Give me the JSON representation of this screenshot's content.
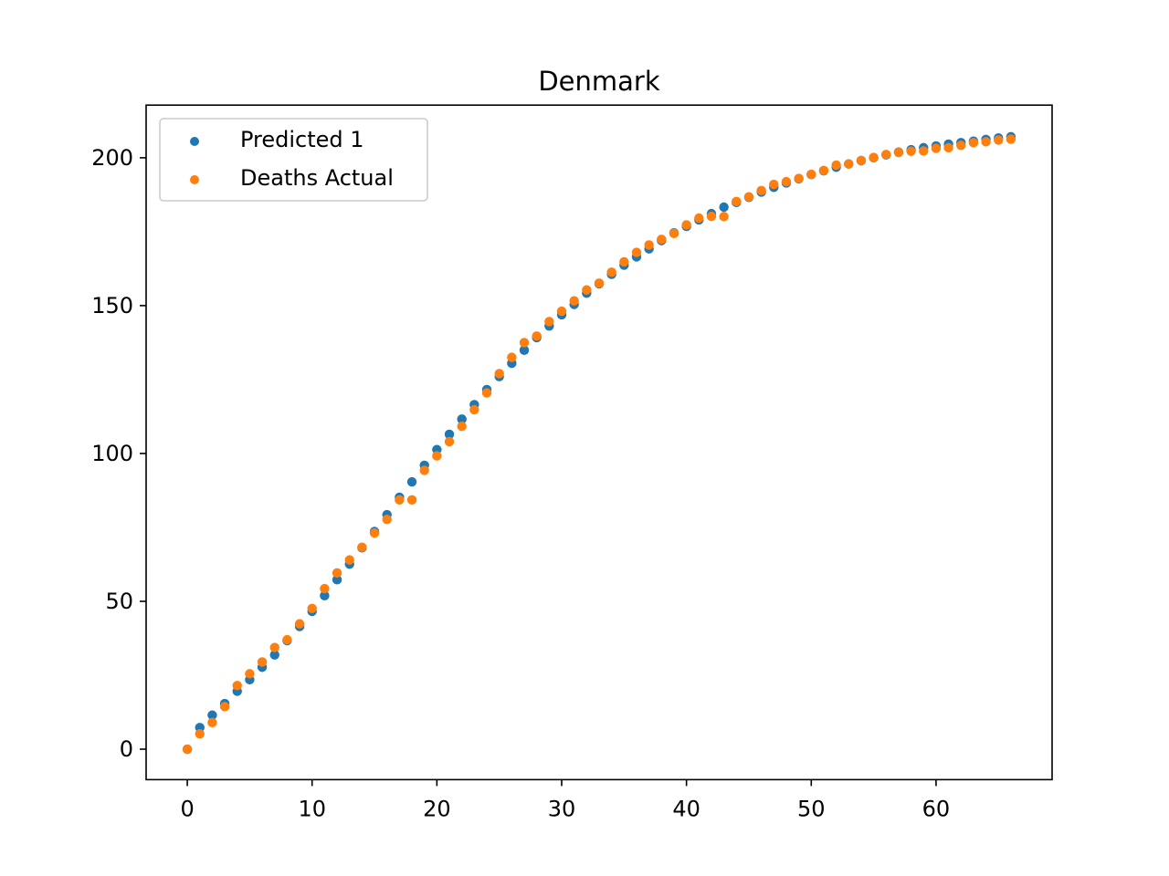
{
  "chart_data": {
    "type": "scatter",
    "title": "Denmark",
    "xlabel": "",
    "ylabel": "",
    "xlim": [
      -3.3,
      69.3
    ],
    "ylim": [
      -10.3,
      217.8
    ],
    "xticks": [
      0,
      10,
      20,
      30,
      40,
      50,
      60
    ],
    "yticks": [
      0,
      50,
      100,
      150,
      200
    ],
    "legend_position": "upper-left",
    "series": [
      {
        "name": "Predicted 1",
        "color": "#1f77b4",
        "x": [
          0,
          1,
          2,
          3,
          4,
          5,
          6,
          7,
          8,
          9,
          10,
          11,
          12,
          13,
          14,
          15,
          16,
          17,
          18,
          19,
          20,
          21,
          22,
          23,
          24,
          25,
          26,
          27,
          28,
          29,
          30,
          31,
          32,
          33,
          34,
          35,
          36,
          37,
          38,
          39,
          40,
          41,
          42,
          43,
          44,
          45,
          46,
          47,
          48,
          49,
          50,
          51,
          52,
          53,
          54,
          55,
          56,
          57,
          58,
          59,
          60,
          61,
          62,
          63,
          64,
          65,
          66
        ],
        "y": [
          0,
          7.3,
          11.5,
          15.4,
          19.6,
          23.5,
          27.7,
          31.9,
          36.7,
          41.5,
          46.6,
          51.9,
          57.3,
          62.6,
          68.1,
          73.6,
          79.3,
          85.2,
          90.4,
          96,
          101.3,
          106.5,
          111.6,
          116.5,
          121.6,
          126,
          130.5,
          134.9,
          139.2,
          143.1,
          146.9,
          150.4,
          154.2,
          157.4,
          160.6,
          163.7,
          166.5,
          169.2,
          172,
          174.6,
          176.8,
          179,
          181.1,
          183.3,
          184.9,
          186.6,
          188.4,
          190,
          191.5,
          192.9,
          194.3,
          195.6,
          196.8,
          197.9,
          199,
          200,
          201,
          201.9,
          202.7,
          203.4,
          204,
          204.6,
          205.1,
          205.6,
          206.2,
          206.7,
          207.1
        ]
      },
      {
        "name": "Deaths Actual",
        "color": "#ff7f0e",
        "x": [
          0,
          1,
          2,
          3,
          4,
          5,
          6,
          7,
          8,
          9,
          10,
          11,
          12,
          13,
          14,
          15,
          16,
          17,
          18,
          19,
          20,
          21,
          22,
          23,
          24,
          25,
          26,
          27,
          28,
          29,
          30,
          31,
          32,
          33,
          34,
          35,
          36,
          37,
          38,
          39,
          40,
          41,
          42,
          43,
          44,
          45,
          46,
          47,
          48,
          49,
          50,
          51,
          52,
          53,
          54,
          55,
          56,
          57,
          58,
          59,
          60,
          61,
          62,
          63,
          64,
          65,
          66
        ],
        "y": [
          0,
          5.2,
          9,
          14.4,
          21.5,
          25.5,
          29.5,
          34.4,
          37,
          42.4,
          47.6,
          54.3,
          59.6,
          64,
          68.3,
          73.1,
          77.7,
          84.3,
          84.3,
          94.3,
          99.2,
          104,
          109.2,
          114.8,
          120.5,
          127,
          132.5,
          137.5,
          139.7,
          144.6,
          148.1,
          151.6,
          155.3,
          157.6,
          161.3,
          164.8,
          168,
          170.5,
          172.4,
          174.4,
          177.3,
          179.6,
          180.2,
          180.1,
          185.2,
          186.8,
          188.9,
          191,
          191.9,
          193,
          194.4,
          195.7,
          197.5,
          197.9,
          199.1,
          200.1,
          201.1,
          201.8,
          202.2,
          202.3,
          203.2,
          203.4,
          204.2,
          205.1,
          205.4,
          206,
          206.3
        ]
      }
    ]
  }
}
